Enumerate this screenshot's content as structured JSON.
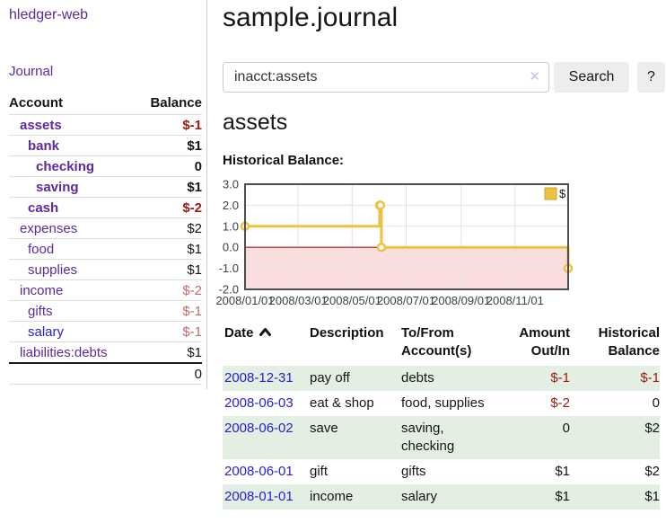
{
  "app": {
    "title": "hledger-web",
    "nav_journal": "Journal"
  },
  "header": {
    "title": "sample.journal"
  },
  "search": {
    "value": "inacct:assets",
    "button": "Search",
    "help": "?",
    "clear": "✕"
  },
  "sidebar": {
    "header": {
      "account": "Account",
      "balance": "Balance"
    },
    "accounts": [
      {
        "name": "assets",
        "level": 1,
        "bold": true,
        "balance": "$-1",
        "negative": "strong"
      },
      {
        "name": "bank",
        "level": 2,
        "bold": true,
        "balance": "$1"
      },
      {
        "name": "checking",
        "level": 3,
        "bold": true,
        "balance": "0"
      },
      {
        "name": "saving",
        "level": 3,
        "bold": true,
        "balance": "$1"
      },
      {
        "name": "cash",
        "level": 2,
        "bold": true,
        "balance": "$-2",
        "negative": "strong"
      },
      {
        "name": "expenses",
        "level": 1,
        "bold": false,
        "balance": "$2"
      },
      {
        "name": "food",
        "level": 2,
        "bold": false,
        "balance": "$1"
      },
      {
        "name": "supplies",
        "level": 2,
        "bold": false,
        "balance": "$1"
      },
      {
        "name": "income",
        "level": 1,
        "bold": false,
        "balance": "$-2",
        "negative": "muted"
      },
      {
        "name": "gifts",
        "level": 2,
        "bold": false,
        "balance": "$-1",
        "negative": "muted"
      },
      {
        "name": "salary",
        "level": 2,
        "bold": false,
        "balance": "$-1",
        "negative": "muted",
        "blue": true
      },
      {
        "name": "liabilities:debts",
        "level": 1,
        "bold": false,
        "balance": "$1"
      }
    ],
    "total": "0"
  },
  "account_page": {
    "heading": "assets",
    "chart_label": "Historical Balance:"
  },
  "chart_data": {
    "type": "line",
    "title": "Historical Balance:",
    "x_range": [
      "2008-01-01",
      "2008-12-31"
    ],
    "x_ticks": [
      "2008-01-01",
      "2008-03-01",
      "2008-05-01",
      "2008-07-01",
      "2008-09-01",
      "2008-11-01"
    ],
    "x_tick_format": "YYYY/MM/DD",
    "y_ticks": [
      3.0,
      2.0,
      1.0,
      0.0,
      -1.0,
      -2.0
    ],
    "ylim": [
      -2.0,
      3.0
    ],
    "grid": true,
    "legend_position": "top-right",
    "series": [
      {
        "name": "$",
        "color": "#edc240",
        "style": "step-after",
        "markers": true,
        "points": [
          [
            "2008-01-01",
            1
          ],
          [
            "2008-06-01",
            2
          ],
          [
            "2008-06-02",
            2
          ],
          [
            "2008-06-03",
            0
          ],
          [
            "2008-12-31",
            -1
          ]
        ]
      }
    ],
    "negative_region_fill": "#fadddd",
    "zero_line_color": "#a21511"
  },
  "register": {
    "sort_column": "Date",
    "sort_direction": "ascending",
    "columns": [
      "Date",
      "Description",
      "To/From Account(s)",
      "Amount Out/In",
      "Historical Balance"
    ],
    "rows": [
      {
        "date": "2008-12-31",
        "description": "pay off",
        "accounts": "debts",
        "amount": "$-1",
        "amount_negative": true,
        "balance": "$-1",
        "balance_negative": true,
        "shaded": true
      },
      {
        "date": "2008-06-03",
        "description": "eat & shop",
        "accounts": "food, supplies",
        "amount": "$-2",
        "amount_negative": true,
        "balance": "0",
        "balance_negative": false,
        "shaded": false
      },
      {
        "date": "2008-06-02",
        "description": "save",
        "accounts": "saving, checking",
        "amount": "0",
        "amount_negative": false,
        "balance": "$2",
        "balance_negative": false,
        "shaded": true
      },
      {
        "date": "2008-06-01",
        "description": "gift",
        "accounts": "gifts",
        "amount": "$1",
        "amount_negative": false,
        "balance": "$2",
        "balance_negative": false,
        "shaded": false
      },
      {
        "date": "2008-01-01",
        "description": "income",
        "accounts": "salary",
        "amount": "$1",
        "amount_negative": false,
        "balance": "$1",
        "balance_negative": false,
        "shaded": true
      }
    ]
  },
  "colors": {
    "accent_purple": "#5b2a9d",
    "link_blue": "#2521d6",
    "negative_strong": "#9c1a10",
    "negative_muted": "#c46b6b",
    "row_green": "#e3efe2",
    "separator": "#cccccc",
    "row_line": "#dddddd",
    "total_line": "#1a1a1a",
    "button_bg": "#ededed",
    "clear_icon": "#c8c0e2",
    "input_border": "#cccccc",
    "chart_border": "#4d4d4d",
    "chart_grid": "#e3e3e3",
    "chart_tick_text": "#3f3f3f"
  }
}
